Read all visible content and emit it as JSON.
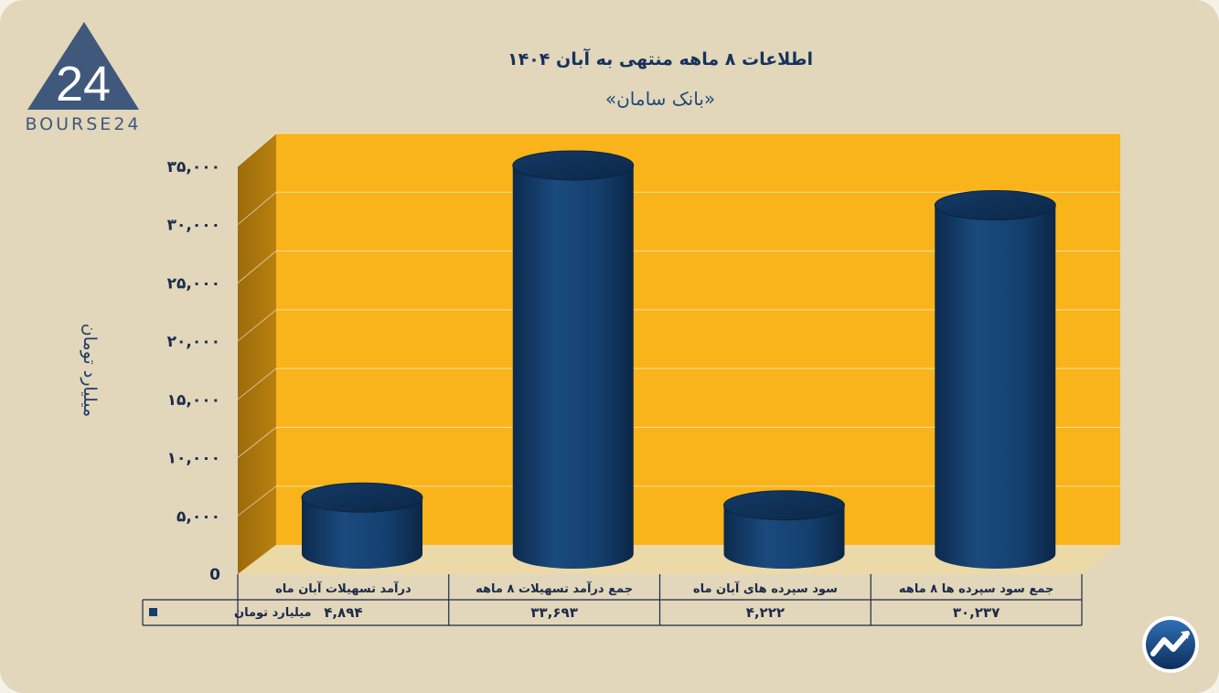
{
  "brand": {
    "logo_text": "BOURSE24",
    "colors": {
      "accent": "#f9b41b",
      "bar": "#133d6b",
      "background": "#e2d6bb",
      "text": "#17325c"
    }
  },
  "chart_data": {
    "type": "bar",
    "title": "اطلاعات ۸ ماهه منتهی به آبان ۱۴۰۴",
    "subtitle": "«بانک سامان»",
    "ylabel": "میلیارد تومان",
    "xlabel": "",
    "ylim": [
      0,
      35000
    ],
    "yticks": [
      {
        "value": 0,
        "label": "0"
      },
      {
        "value": 5000,
        "label": "۵,۰۰۰"
      },
      {
        "value": 10000,
        "label": "۱۰,۰۰۰"
      },
      {
        "value": 15000,
        "label": "۱۵,۰۰۰"
      },
      {
        "value": 20000,
        "label": "۲۰,۰۰۰"
      },
      {
        "value": 25000,
        "label": "۲۵,۰۰۰"
      },
      {
        "value": 30000,
        "label": "۳۰,۰۰۰"
      },
      {
        "value": 35000,
        "label": "۳۵,۰۰۰"
      }
    ],
    "grid": true,
    "legend_placement": "bottom-left (data table)",
    "categories": [
      "درآمد تسهیلات آبان ماه",
      "جمع درآمد تسهیلات ۸ ماهه",
      "سود سپرده های آبان ماه",
      "جمع سود سپرده ها ۸ ماهه"
    ],
    "series": [
      {
        "name": "میلیارد تومان",
        "values": [
          4894,
          33693,
          4222,
          30237
        ],
        "value_labels": [
          "۴,۸۹۴",
          "۳۳,۶۹۳",
          "۴,۲۲۲",
          "۳۰,۲۳۷"
        ]
      }
    ]
  }
}
